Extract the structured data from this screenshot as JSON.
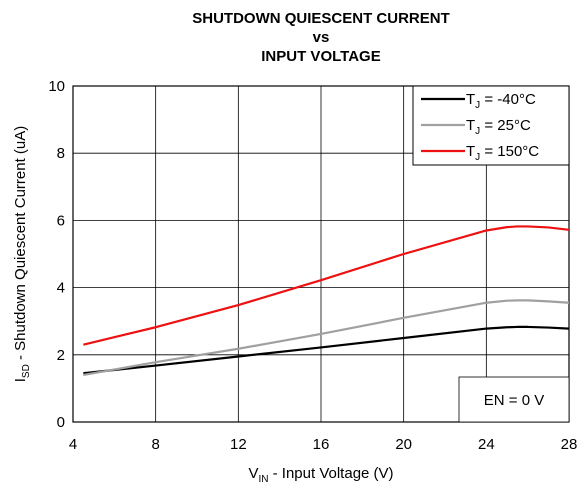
{
  "chart_data": {
    "type": "line",
    "title": [
      "SHUTDOWN QUIESCENT CURRENT",
      "vs",
      "INPUT VOLTAGE"
    ],
    "xlabel": [
      "V",
      "IN",
      " - Input Voltage (V)"
    ],
    "ylabel": [
      "I",
      "SD",
      " - Shutdown Quiescent Current (uA)"
    ],
    "annotation": "EN = 0 V",
    "x": [
      4.5,
      8,
      12,
      16,
      20,
      24,
      25,
      25.5,
      26,
      27,
      28
    ],
    "series": [
      {
        "name": [
          "T",
          "J",
          " = -40°C"
        ],
        "color": "#000000",
        "values": [
          1.45,
          1.68,
          1.95,
          2.22,
          2.5,
          2.78,
          2.82,
          2.83,
          2.83,
          2.81,
          2.78
        ]
      },
      {
        "name": [
          "T",
          "J",
          " = 25°C"
        ],
        "color": "#a0a0a0",
        "values": [
          1.4,
          1.78,
          2.18,
          2.62,
          3.1,
          3.55,
          3.61,
          3.62,
          3.62,
          3.59,
          3.55
        ]
      },
      {
        "name": [
          "T",
          "J",
          " = 150°C"
        ],
        "color": "#ee1111",
        "values": [
          2.3,
          2.82,
          3.48,
          4.22,
          5.0,
          5.7,
          5.8,
          5.82,
          5.82,
          5.79,
          5.72
        ]
      }
    ],
    "xlim": [
      4,
      28
    ],
    "xticks": [
      4,
      8,
      12,
      16,
      20,
      24,
      28
    ],
    "ylim": [
      0,
      10
    ],
    "yticks": [
      0,
      2,
      4,
      6,
      8,
      10
    ],
    "grid": true,
    "legend": "upper right"
  }
}
